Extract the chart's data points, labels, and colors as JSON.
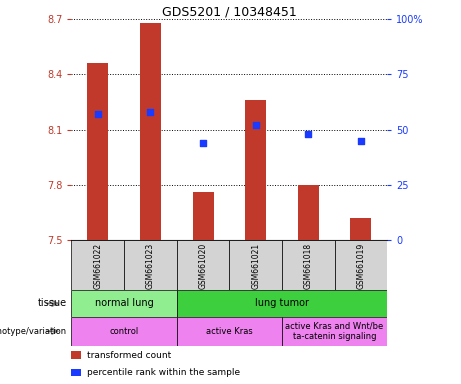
{
  "title": "GDS5201 / 10348451",
  "samples": [
    "GSM661022",
    "GSM661023",
    "GSM661020",
    "GSM661021",
    "GSM661018",
    "GSM661019"
  ],
  "bar_values": [
    8.46,
    8.68,
    7.76,
    8.26,
    7.8,
    7.62
  ],
  "bar_bottom": 7.5,
  "percentile_values": [
    57,
    58,
    44,
    52,
    48,
    45
  ],
  "ylim_left": [
    7.5,
    8.7
  ],
  "ylim_right": [
    0,
    100
  ],
  "yticks_left": [
    7.5,
    7.8,
    8.1,
    8.4,
    8.7
  ],
  "ytick_labels_left": [
    "7.5",
    "7.8",
    "8.1",
    "8.4",
    "8.7"
  ],
  "yticks_right": [
    0,
    25,
    50,
    75,
    100
  ],
  "ytick_labels_right": [
    "0",
    "25",
    "50",
    "75",
    "100%"
  ],
  "bar_color": "#c0392b",
  "dot_color": "#1a3aff",
  "bar_width": 0.4,
  "tissue_groups": [
    {
      "label": "normal lung",
      "cols": [
        0,
        1
      ],
      "color": "#90ee90"
    },
    {
      "label": "lung tumor",
      "cols": [
        2,
        3,
        4,
        5
      ],
      "color": "#3ecf3e"
    }
  ],
  "genotype_groups": [
    {
      "label": "control",
      "cols": [
        0,
        1
      ],
      "color": "#ee82ee"
    },
    {
      "label": "active Kras",
      "cols": [
        2,
        3
      ],
      "color": "#ee82ee"
    },
    {
      "label": "active Kras and Wnt/be\nta-catenin signaling",
      "cols": [
        4,
        5
      ],
      "color": "#ee82ee"
    }
  ],
  "legend_items": [
    {
      "color": "#c0392b",
      "label": "transformed count"
    },
    {
      "color": "#1a3aff",
      "label": "percentile rank within the sample"
    }
  ],
  "sample_box_color": "#d3d3d3",
  "title_fontsize": 9,
  "tick_fontsize": 7,
  "sample_fontsize": 5.5,
  "row_fontsize": 7,
  "legend_fontsize": 6.5
}
